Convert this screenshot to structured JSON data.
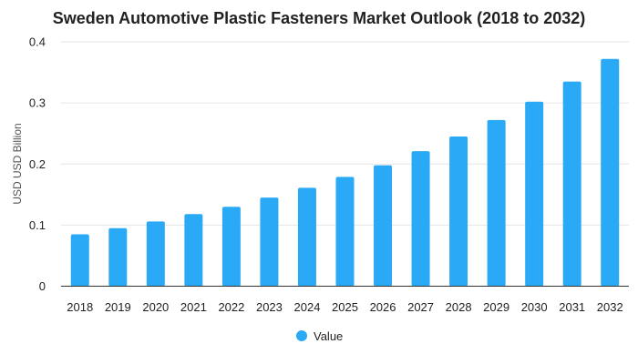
{
  "chart_data": {
    "type": "bar",
    "title": "Sweden Automotive Plastic Fasteners Market Outlook (2018 to 2032)",
    "xlabel": "",
    "ylabel": "USD USD Billion",
    "ylim": [
      0,
      0.4
    ],
    "yticks": [
      "0",
      "0.1",
      "0.2",
      "0.3",
      "0.4"
    ],
    "grid": true,
    "legend_position": "bottom",
    "categories": [
      "2018",
      "2019",
      "2020",
      "2021",
      "2022",
      "2023",
      "2024",
      "2025",
      "2026",
      "2027",
      "2028",
      "2029",
      "2030",
      "2031",
      "2032"
    ],
    "series": [
      {
        "name": "Value",
        "color": "#2aaaf6",
        "values": [
          0.085,
          0.095,
          0.106,
          0.118,
          0.13,
          0.145,
          0.161,
          0.179,
          0.198,
          0.221,
          0.245,
          0.272,
          0.302,
          0.335,
          0.372
        ]
      }
    ]
  }
}
